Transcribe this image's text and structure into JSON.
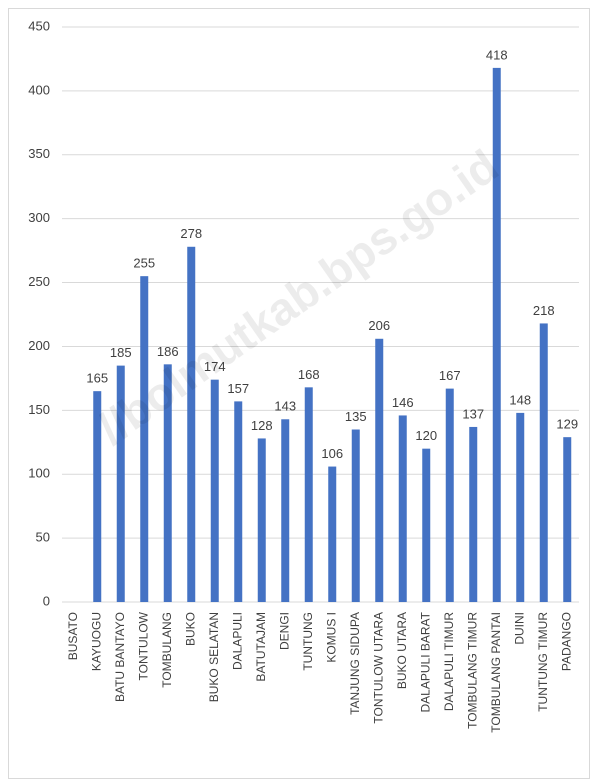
{
  "chart_data": {
    "type": "bar",
    "categories": [
      "BUSATO",
      "KAYUOGU",
      "BATU BANTAYO",
      "TONTULOW",
      "TOMBULANG",
      "BUKO",
      "BUKO SELATAN",
      "DALAPULI",
      "BATUTAJAM",
      "DENGI",
      "TUNTUNG",
      "KOMUS I",
      "TANJUNG SIDUPA",
      "TONTULOW UTARA",
      "BUKO UTARA",
      "DALAPULI BARAT",
      "DALAPULI TIMUR",
      "TOMBULANG TIMUR",
      "TOMBULANG PANTAI",
      "DUINI",
      "TUNTUNG TIMUR",
      "PADANGO"
    ],
    "values": [
      null,
      165,
      185,
      255,
      186,
      278,
      174,
      157,
      128,
      143,
      168,
      106,
      135,
      206,
      146,
      120,
      167,
      137,
      418,
      148,
      218,
      129
    ],
    "color": "#4472c4",
    "ylim": [
      0,
      450
    ],
    "yticks": [
      0,
      50,
      100,
      150,
      200,
      250,
      300,
      350,
      400,
      450
    ],
    "grid": true,
    "watermark": "//bolmutkab.bps.go.id"
  }
}
